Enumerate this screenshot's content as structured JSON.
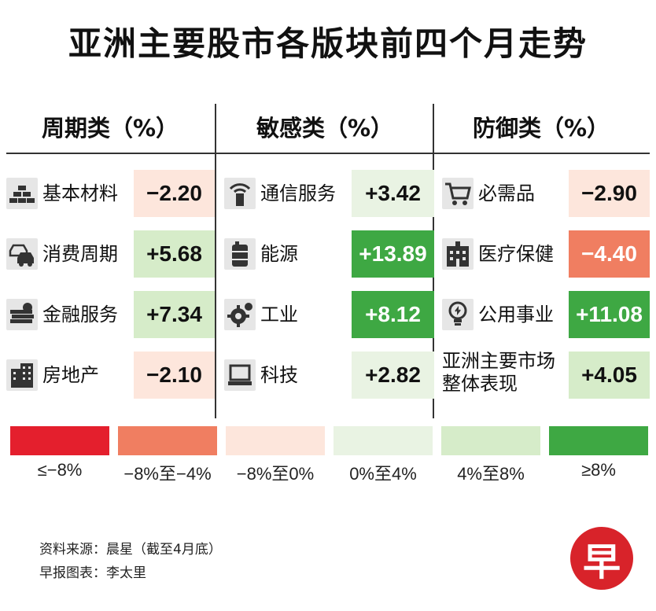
{
  "title": "亚洲主要股市各版块前四个月走势",
  "colors": {
    "le_neg8": "#e41f2d",
    "neg8_neg4": "#f07e61",
    "neg8_0": "#fde6dc",
    "zero_4": "#e9f3e3",
    "four_8": "#d6ecc9",
    "ge_8": "#3ea843"
  },
  "chart_data": {
    "type": "table",
    "columns": [
      {
        "header": "周期类（%）",
        "rows": [
          {
            "icon": "materials-bars-icon",
            "label": "基本材料",
            "value": "−2.20",
            "num": -2.2
          },
          {
            "icon": "cars-icon",
            "label": "消费周期",
            "value": "+5.68",
            "num": 5.68
          },
          {
            "icon": "money-stack-icon",
            "label": "金融服务",
            "value": "+7.34",
            "num": 7.34
          },
          {
            "icon": "building-icon",
            "label": "房地产",
            "value": "−2.10",
            "num": -2.1
          }
        ]
      },
      {
        "header": "敏感类（%）",
        "rows": [
          {
            "icon": "signal-tower-icon",
            "label": "通信服务",
            "value": "+3.42",
            "num": 3.42
          },
          {
            "icon": "oil-barrel-icon",
            "label": "能源",
            "value": "+13.89",
            "num": 13.89
          },
          {
            "icon": "gear-wrench-icon",
            "label": "工业",
            "value": "+8.12",
            "num": 8.12
          },
          {
            "icon": "computer-icon",
            "label": "科技",
            "value": "+2.82",
            "num": 2.82
          }
        ]
      },
      {
        "header": "防御类（%）",
        "rows": [
          {
            "icon": "shopping-cart-icon",
            "label": "必需品",
            "value": "−2.90",
            "num": -2.9
          },
          {
            "icon": "hospital-icon",
            "label": "医疗保健",
            "value": "−4.40",
            "num": -4.4
          },
          {
            "icon": "lightbulb-icon",
            "label": "公用事业",
            "value": "+11.08",
            "num": 11.08
          },
          {
            "icon": "",
            "label": "亚洲主要市场整体表现",
            "label_line1": "亚洲主要市场",
            "label_line2": "整体表现",
            "value": "+4.05",
            "num": 4.05
          }
        ]
      }
    ],
    "legend": [
      {
        "label": "≤−8%",
        "color": "#e41f2d"
      },
      {
        "label": "−8%至−4%",
        "color": "#f07e61"
      },
      {
        "label": "−8%至0%",
        "color": "#fde6dc"
      },
      {
        "label": "0%至4%",
        "color": "#e9f3e3"
      },
      {
        "label": "4%至8%",
        "color": "#d6ecc9"
      },
      {
        "label": "≥8%",
        "color": "#3ea843"
      }
    ]
  },
  "source": "资料来源：晨星（截至4月底）",
  "credit": "早报图表：李太里",
  "logo_text": "早"
}
